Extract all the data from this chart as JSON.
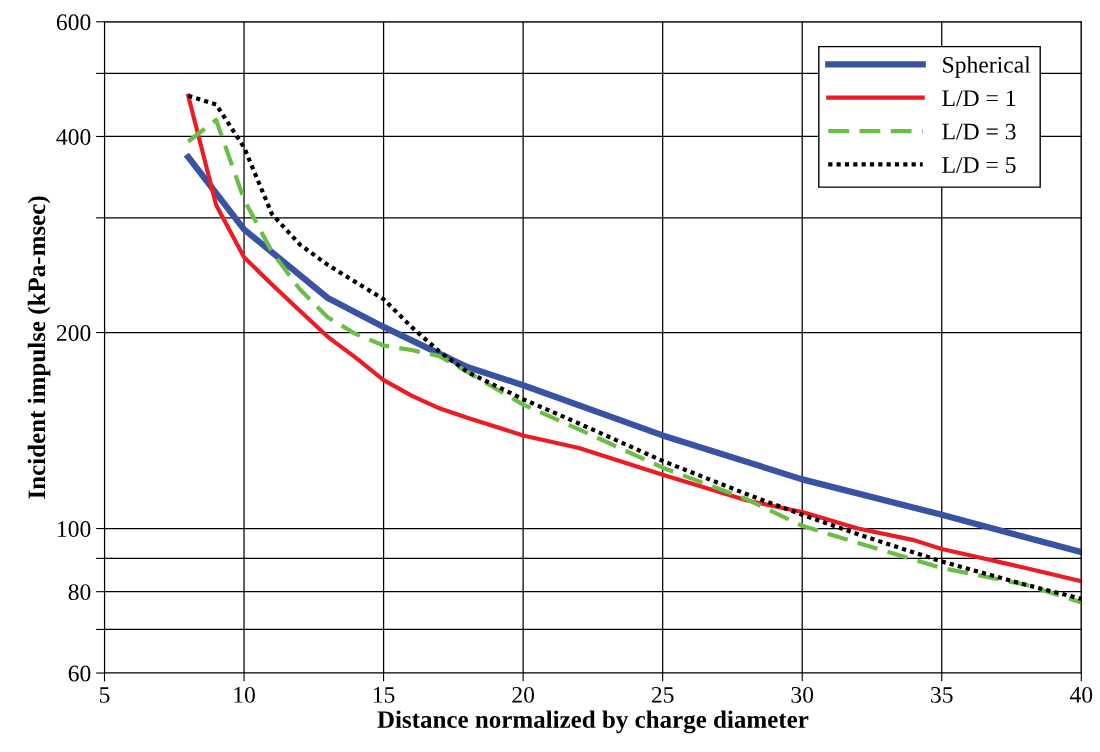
{
  "chart_data": {
    "type": "line",
    "xlabel": "Distance normalized by charge diameter",
    "ylabel": "Incident impulse (kPa-msec)",
    "log": "y",
    "xlim": [
      5,
      40
    ],
    "xticks": [
      5,
      10,
      15,
      20,
      25,
      30,
      35,
      40
    ],
    "ylim": [
      60,
      600
    ],
    "yticks": [
      60,
      {
        "value": 70,
        "label": null
      },
      80,
      {
        "value": 90,
        "label": null
      },
      100,
      200,
      {
        "value": 300,
        "label": null
      },
      400,
      {
        "value": 500,
        "label": null
      },
      600
    ],
    "grid": true,
    "legend": "top right",
    "marker": "none",
    "series": [
      {
        "name": "Spherical",
        "color": "#3953a4",
        "line_style": "solid",
        "x": [
          8,
          10,
          13,
          15,
          18,
          20,
          25,
          30,
          35,
          40
        ],
        "values": [
          372,
          288,
          226,
          204,
          177,
          166,
          139,
          119,
          105,
          92
        ]
      },
      {
        "name": "L/D = 1",
        "color": "#ed1c24",
        "line_style": "solid",
        "x": [
          8,
          9,
          10,
          11,
          12,
          13,
          14,
          15,
          16,
          17,
          18,
          20,
          22,
          25,
          28,
          30,
          32,
          34,
          35,
          36,
          38,
          40
        ],
        "values": [
          462,
          314,
          261,
          237,
          216,
          197,
          183,
          169,
          160,
          153,
          148,
          139,
          133,
          121,
          110.5,
          106,
          100,
          96,
          93,
          91,
          87,
          83
        ]
      },
      {
        "name": "L/D = 3",
        "color": "#6abd45",
        "line_style": "dashed",
        "x": [
          8,
          9,
          10,
          11,
          12,
          13,
          14,
          15,
          16,
          17,
          18,
          20,
          22,
          25,
          28,
          30,
          32,
          35,
          38,
          40
        ],
        "values": [
          393,
          424,
          320,
          266,
          233,
          211,
          199,
          191,
          188,
          184,
          174,
          155,
          142,
          124,
          111,
          101,
          95,
          87,
          82,
          77
        ]
      },
      {
        "name": "L/D = 5",
        "color": "#000000",
        "line_style": "dotted",
        "x": [
          8,
          9,
          10,
          11,
          12,
          13,
          14,
          15,
          16,
          17,
          18,
          20,
          22,
          25,
          28,
          30,
          32,
          35,
          38,
          40
        ],
        "values": [
          462,
          448,
          385,
          304,
          273,
          254,
          239,
          225,
          204,
          187,
          174,
          158,
          145,
          127,
          113,
          105,
          98,
          89,
          82,
          78
        ]
      }
    ]
  }
}
